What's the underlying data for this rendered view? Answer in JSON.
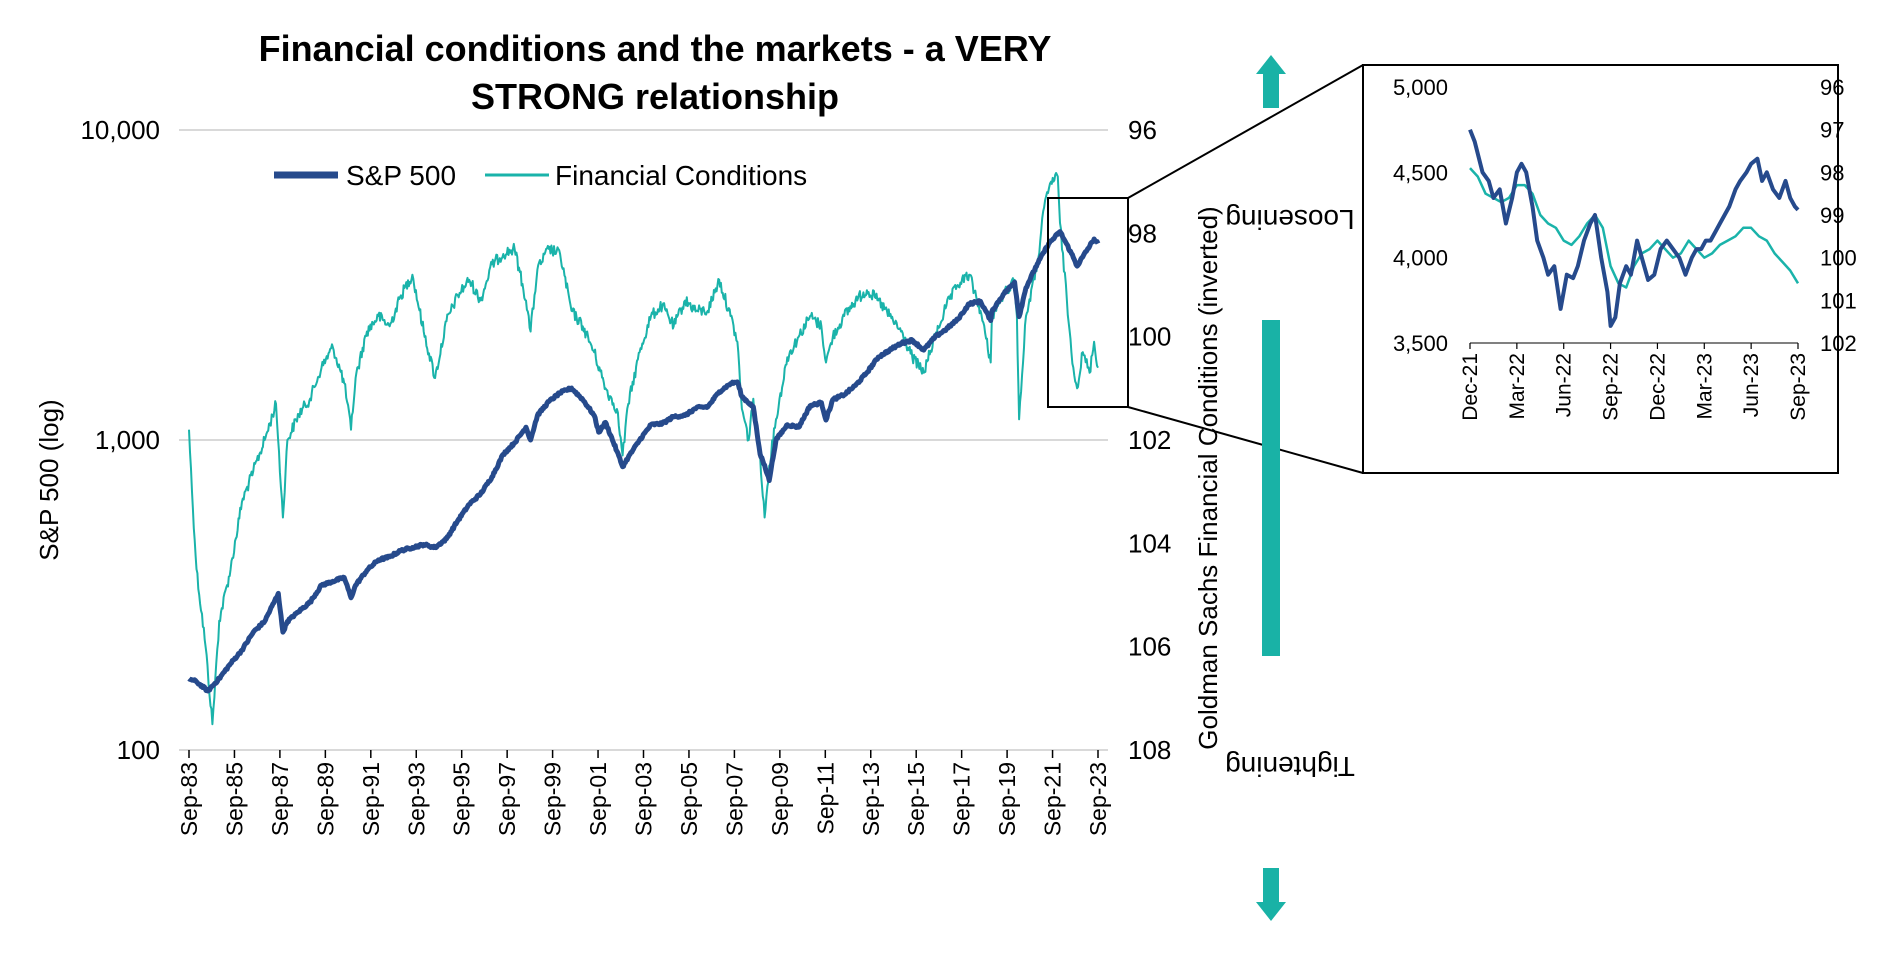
{
  "colors": {
    "sp500": "#264a8c",
    "financial_conditions": "#1ab3aa",
    "arrow": "#19b2a6",
    "grid": "#d9d9d9"
  },
  "annotations": {
    "top": "Loosening",
    "bottom": "Tightening"
  },
  "chart_data": [
    {
      "id": "main",
      "type": "line",
      "title": [
        "Financial conditions and the markets - a VERY",
        "STRONG  relationship"
      ],
      "ylabel": "S&P 500 (log)",
      "y2label": "Goldman Sachs Financial Conditions (inverted)",
      "yscale": "log",
      "ylim": [
        100,
        10000
      ],
      "y_ticks": [
        "10,000",
        "1,000",
        "100"
      ],
      "y2lim": [
        96,
        108
      ],
      "y2_inverted": true,
      "y2_ticks": [
        "96",
        "98",
        "100",
        "102",
        "104",
        "106",
        "108"
      ],
      "xlim": [
        1983.67,
        2023.67
      ],
      "x_ticks": [
        "Sep-83",
        "Sep-85",
        "Sep-87",
        "Sep-89",
        "Sep-91",
        "Sep-93",
        "Sep-95",
        "Sep-97",
        "Sep-99",
        "Sep-01",
        "Sep-03",
        "Sep-05",
        "Sep-07",
        "Sep-09",
        "Sep-11",
        "Sep-13",
        "Sep-15",
        "Sep-17",
        "Sep-19",
        "Sep-21",
        "Sep-23"
      ],
      "grid": true,
      "legend": "top-left",
      "series": [
        {
          "name": "S&P 500",
          "axis": "left",
          "key": "sp500",
          "x": [
            1983.67,
            1984.0,
            1984.5,
            1985.0,
            1985.5,
            1986.0,
            1986.5,
            1987.0,
            1987.6,
            1987.8,
            1988.0,
            1988.5,
            1989.0,
            1989.5,
            1990.0,
            1990.5,
            1990.8,
            1991.0,
            1991.5,
            1992.0,
            1992.5,
            1993.0,
            1993.5,
            1994.0,
            1994.5,
            1995.0,
            1995.5,
            1996.0,
            1996.5,
            1997.0,
            1997.5,
            1998.0,
            1998.5,
            1998.7,
            1999.0,
            1999.5,
            2000.0,
            2000.5,
            2001.0,
            2001.5,
            2001.7,
            2002.0,
            2002.5,
            2002.75,
            2003.0,
            2003.5,
            2004.0,
            2004.5,
            2005.0,
            2005.5,
            2006.0,
            2006.5,
            2007.0,
            2007.5,
            2007.8,
            2008.0,
            2008.5,
            2008.8,
            2009.0,
            2009.2,
            2009.5,
            2010.0,
            2010.5,
            2011.0,
            2011.5,
            2011.7,
            2012.0,
            2012.5,
            2013.0,
            2013.5,
            2014.0,
            2014.5,
            2015.0,
            2015.5,
            2016.0,
            2016.5,
            2017.0,
            2017.5,
            2018.0,
            2018.5,
            2018.95,
            2019.0,
            2019.5,
            2020.0,
            2020.2,
            2020.5,
            2021.0,
            2021.5,
            2022.0,
            2022.5,
            2022.75,
            2023.0,
            2023.5,
            2023.67
          ],
          "y": [
            170,
            166,
            155,
            170,
            190,
            210,
            240,
            260,
            320,
            240,
            260,
            280,
            300,
            340,
            350,
            360,
            310,
            340,
            380,
            410,
            420,
            440,
            450,
            460,
            450,
            480,
            550,
            620,
            670,
            760,
            900,
            980,
            1100,
            1000,
            1200,
            1330,
            1420,
            1470,
            1350,
            1200,
            1060,
            1140,
            920,
            820,
            880,
            1000,
            1120,
            1130,
            1190,
            1200,
            1270,
            1280,
            1430,
            1520,
            1540,
            1380,
            1280,
            900,
            830,
            740,
            1000,
            1120,
            1100,
            1290,
            1320,
            1160,
            1350,
            1400,
            1500,
            1650,
            1850,
            1950,
            2050,
            2100,
            1950,
            2150,
            2280,
            2450,
            2750,
            2800,
            2430,
            2600,
            2950,
            3230,
            2500,
            3100,
            3700,
            4300,
            4700,
            4000,
            3640,
            3900,
            4450,
            4300
          ]
        },
        {
          "name": "Financial Conditions",
          "axis": "right",
          "key": "financial_conditions",
          "x": [
            1983.67,
            1983.8,
            1984.0,
            1984.4,
            1984.7,
            1985.0,
            1985.5,
            1986.0,
            1986.5,
            1987.0,
            1987.5,
            1987.8,
            1988.0,
            1988.5,
            1989.0,
            1989.5,
            1990.0,
            1990.5,
            1990.8,
            1991.0,
            1991.5,
            1992.0,
            1992.5,
            1993.0,
            1993.5,
            1994.0,
            1994.5,
            1995.0,
            1995.5,
            1996.0,
            1996.5,
            1997.0,
            1997.5,
            1998.0,
            1998.5,
            1998.7,
            1999.0,
            1999.5,
            2000.0,
            2000.5,
            2001.0,
            2001.5,
            2002.0,
            2002.5,
            2002.75,
            2003.0,
            2003.5,
            2004.0,
            2004.5,
            2005.0,
            2005.5,
            2006.0,
            2006.5,
            2007.0,
            2007.5,
            2007.8,
            2008.0,
            2008.3,
            2008.5,
            2008.8,
            2009.0,
            2009.2,
            2009.5,
            2010.0,
            2010.5,
            2011.0,
            2011.5,
            2011.7,
            2012.0,
            2012.5,
            2013.0,
            2013.5,
            2014.0,
            2014.5,
            2015.0,
            2015.5,
            2016.0,
            2016.5,
            2017.0,
            2017.5,
            2018.0,
            2018.5,
            2018.95,
            2019.0,
            2019.5,
            2020.0,
            2020.1,
            2020.2,
            2020.5,
            2021.0,
            2021.3,
            2021.6,
            2021.9,
            2022.0,
            2022.3,
            2022.5,
            2022.75,
            2023.0,
            2023.3,
            2023.5,
            2023.67
          ],
          "y": [
            101.8,
            103.0,
            104.5,
            106.0,
            107.5,
            105.5,
            104.5,
            103.2,
            102.6,
            102.0,
            101.3,
            103.5,
            102.0,
            101.5,
            101.2,
            100.6,
            100.2,
            100.9,
            101.8,
            100.8,
            99.9,
            99.6,
            99.8,
            99.2,
            98.8,
            99.9,
            100.8,
            99.7,
            99.2,
            98.9,
            99.3,
            98.6,
            98.4,
            98.3,
            99.3,
            99.9,
            98.7,
            98.3,
            98.4,
            99.5,
            99.8,
            100.3,
            101.0,
            101.4,
            102.3,
            101.3,
            100.3,
            99.6,
            99.4,
            99.8,
            99.3,
            99.5,
            99.5,
            98.9,
            99.6,
            100.1,
            101.4,
            102.0,
            101.2,
            102.3,
            103.5,
            102.5,
            101.6,
            100.4,
            100.0,
            99.6,
            99.8,
            100.5,
            100.0,
            99.6,
            99.3,
            99.1,
            99.3,
            99.6,
            99.9,
            100.4,
            100.7,
            100.0,
            99.4,
            99.0,
            98.8,
            99.5,
            100.5,
            99.6,
            99.2,
            98.9,
            99.6,
            101.6,
            99.6,
            98.6,
            97.5,
            97.0,
            96.9,
            97.8,
            99.3,
            100.3,
            101.0,
            100.3,
            100.7,
            100.1,
            100.6
          ]
        }
      ]
    },
    {
      "id": "inset",
      "type": "line",
      "ylim": [
        3500,
        5000
      ],
      "y_ticks": [
        "5,000",
        "4,500",
        "4,000",
        "3,500"
      ],
      "y2lim": [
        96,
        102
      ],
      "y2_inverted": true,
      "y2_ticks": [
        "96",
        "97",
        "98",
        "99",
        "100",
        "101",
        "102"
      ],
      "x_ticks": [
        "Dec-21",
        "Mar-22",
        "Jun-22",
        "Sep-22",
        "Dec-22",
        "Mar-23",
        "Jun-23",
        "Sep-23"
      ],
      "series": [
        {
          "name": "S&P 500",
          "axis": "left",
          "key": "sp500",
          "x": [
            0,
            0.3,
            0.8,
            1.2,
            1.5,
            1.9,
            2.3,
            2.7,
            3.0,
            3.3,
            3.6,
            4.0,
            4.3,
            4.7,
            5.0,
            5.4,
            5.8,
            6.2,
            6.6,
            6.9,
            7.3,
            7.7,
            8.0,
            8.4,
            8.8,
            9.0,
            9.3,
            9.6,
            10.0,
            10.3,
            10.7,
            11.0,
            11.4,
            11.8,
            12.2,
            12.6,
            13.0,
            13.4,
            13.8,
            14.2,
            14.5,
            14.8,
            15.1,
            15.4,
            15.7,
            16.0,
            16.3,
            16.6,
            17.0,
            17.3,
            17.7,
            18.0,
            18.4,
            18.7,
            19.0,
            19.4,
            19.8,
            20.2,
            20.5,
            20.8,
            21.0
          ],
          "x_scale": "months since Dec-21 (ticks every 3 months)",
          "y": [
            4750,
            4680,
            4500,
            4450,
            4350,
            4400,
            4200,
            4350,
            4500,
            4550,
            4500,
            4300,
            4100,
            4000,
            3900,
            3950,
            3700,
            3900,
            3880,
            3950,
            4100,
            4200,
            4250,
            4000,
            3800,
            3600,
            3650,
            3850,
            3950,
            3900,
            4100,
            4000,
            3870,
            3900,
            4050,
            4100,
            4050,
            4000,
            3900,
            4000,
            4050,
            4050,
            4100,
            4100,
            4150,
            4200,
            4250,
            4300,
            4400,
            4450,
            4500,
            4550,
            4580,
            4450,
            4500,
            4400,
            4350,
            4450,
            4350,
            4300,
            4280
          ]
        },
        {
          "name": "Financial Conditions",
          "axis": "right",
          "key": "financial_conditions",
          "x": [
            0,
            0.5,
            1.0,
            1.5,
            2.0,
            2.5,
            3.0,
            3.5,
            4.0,
            4.5,
            5.0,
            5.5,
            6.0,
            6.5,
            7.0,
            7.5,
            8.0,
            8.5,
            9.0,
            9.5,
            10.0,
            10.5,
            11.0,
            11.5,
            12.0,
            12.5,
            13.0,
            13.5,
            14.0,
            14.5,
            15.0,
            15.5,
            16.0,
            16.5,
            17.0,
            17.5,
            18.0,
            18.5,
            19.0,
            19.5,
            20.0,
            20.5,
            21.0
          ],
          "y": [
            97.9,
            98.1,
            98.5,
            98.6,
            98.7,
            98.6,
            98.3,
            98.3,
            98.5,
            99.0,
            99.2,
            99.3,
            99.6,
            99.7,
            99.5,
            99.2,
            99.0,
            99.3,
            100.2,
            100.6,
            100.7,
            100.2,
            99.9,
            99.8,
            99.6,
            99.8,
            100.0,
            99.9,
            99.6,
            99.8,
            100.0,
            99.9,
            99.7,
            99.6,
            99.5,
            99.3,
            99.3,
            99.5,
            99.6,
            99.9,
            100.1,
            100.3,
            100.6
          ]
        }
      ]
    }
  ]
}
